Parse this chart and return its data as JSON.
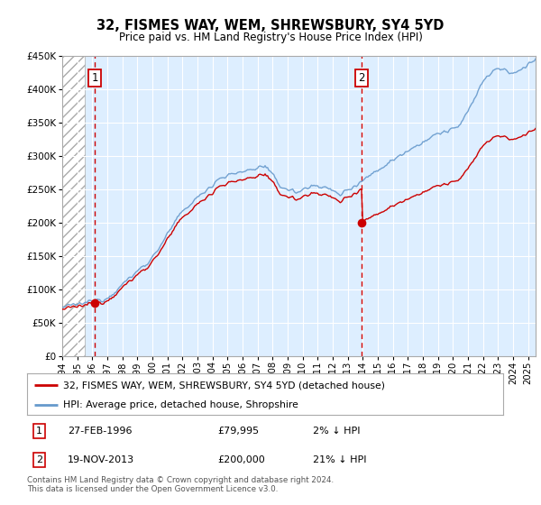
{
  "title": "32, FISMES WAY, WEM, SHREWSBURY, SY4 5YD",
  "subtitle": "Price paid vs. HM Land Registry's House Price Index (HPI)",
  "sale1_year": 1996,
  "sale1_month": 2,
  "sale1_price": 79995,
  "sale1_label": "1",
  "sale2_year": 2013,
  "sale2_month": 11,
  "sale2_price": 200000,
  "sale2_label": "2",
  "legend_line1": "32, FISMES WAY, WEM, SHREWSBURY, SY4 5YD (detached house)",
  "legend_line2": "HPI: Average price, detached house, Shropshire",
  "footer": "Contains HM Land Registry data © Crown copyright and database right 2024.\nThis data is licensed under the Open Government Licence v3.0.",
  "red_line_color": "#cc0000",
  "blue_line_color": "#6699cc",
  "bg_color": "#ddeeff",
  "ylim_min": 0,
  "ylim_max": 450000,
  "xlim_start": 1994.0,
  "xlim_end": 2025.5,
  "hatch_end": 1995.5,
  "hpi_start_year": 1994,
  "hpi_end_year": 2025,
  "hpi_base_value": 75000,
  "note1_date": "27-FEB-1996",
  "note1_price": "£79,995",
  "note1_hpi": "2% ↓ HPI",
  "note2_date": "19-NOV-2013",
  "note2_price": "£200,000",
  "note2_hpi": "21% ↓ HPI"
}
